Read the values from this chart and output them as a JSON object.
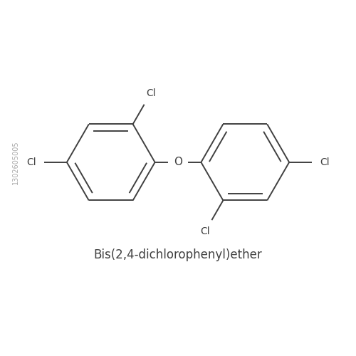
{
  "title": "Bis(2,4-dichlorophenyl)ether",
  "title_fontsize": 12,
  "bg_color": "#ffffff",
  "line_color": "#404040",
  "line_width": 1.4,
  "text_color": "#404040",
  "label_fontsize": 10,
  "figsize": [
    5.0,
    5.0
  ],
  "dpi": 100,
  "O_label": "O",
  "sidebar_text": "1302605005",
  "sidebar_fontsize": 7
}
